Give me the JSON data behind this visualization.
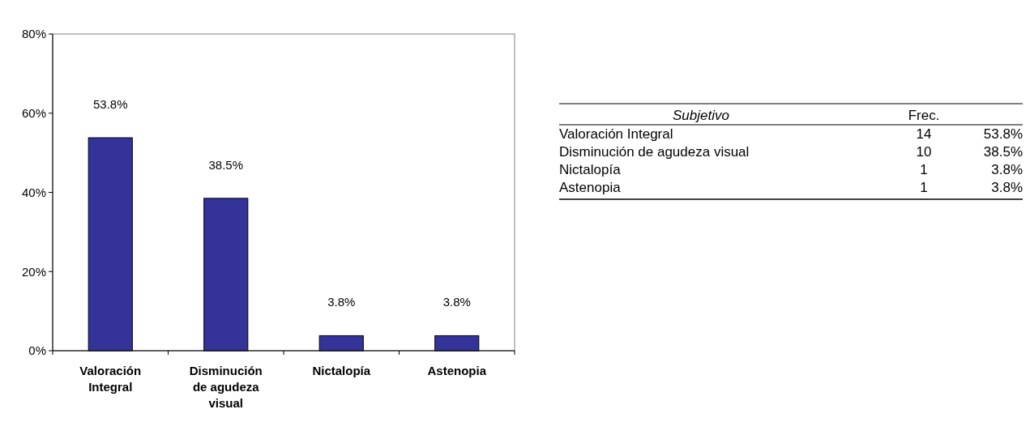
{
  "chart_data": [
    {
      "type": "bar",
      "categories": [
        "Valoración Integral",
        "Disminución de agudeza visual",
        "Nictalopía",
        "Astenopia"
      ],
      "values": [
        53.8,
        38.5,
        3.8,
        3.8
      ],
      "value_labels": [
        "53.8%",
        "38.5%",
        "3.8%",
        "3.8%"
      ],
      "color": "#333399",
      "ylim": [
        0,
        80
      ],
      "yticks": [
        {
          "value": 0,
          "label": "0%"
        },
        {
          "value": 20,
          "label": "20%"
        },
        {
          "value": 40,
          "label": "40%"
        },
        {
          "value": 60,
          "label": "60%"
        },
        {
          "value": 80,
          "label": "80%"
        }
      ],
      "grid": false
    },
    {
      "type": "other",
      "title": "Subjetivo",
      "data_labels": true,
      "categories": [
        "Valoración Integral",
        "Disminución de agudeza visual",
        "Nictalopía",
        "Astenopia"
      ],
      "series": [
        {
          "name": "Frec.",
          "values": [
            14,
            10,
            1,
            1
          ]
        },
        {
          "values": [
            53.8,
            38.5,
            3.8,
            3.8
          ],
          "value_labels": [
            "53.8%",
            "38.5%",
            "3.8%",
            "3.8%"
          ]
        }
      ]
    }
  ]
}
